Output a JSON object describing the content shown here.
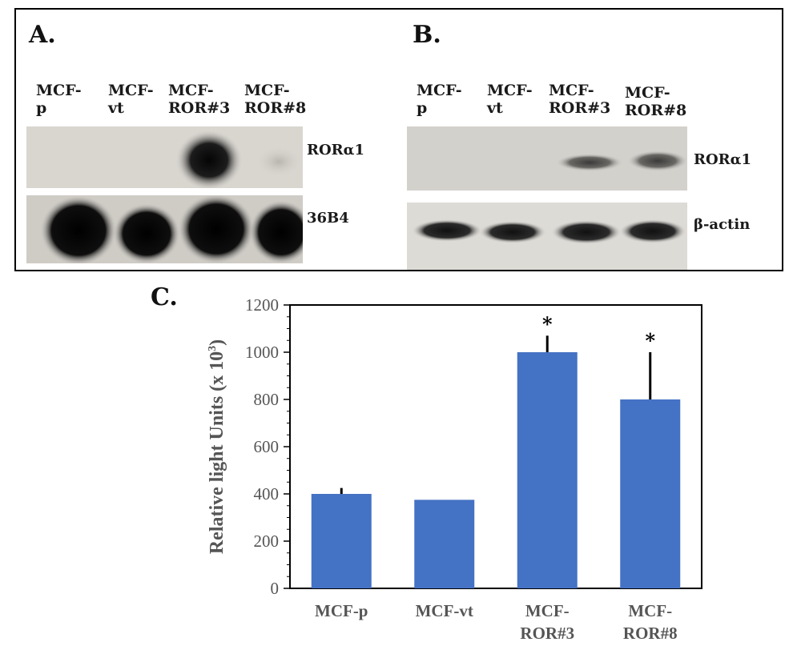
{
  "panels": {
    "a": {
      "label": "A.",
      "lanes": [
        "MCF-\np",
        "MCF-\nvt",
        "MCF-\nROR#3",
        "MCF-\nROR#8"
      ],
      "bands": [
        "RORα1",
        "36B4"
      ]
    },
    "b": {
      "label": "B.",
      "lanes": [
        "MCF-\np",
        "MCF-\nvt",
        "MCF-\nROR#3",
        "MCF-\nROR#8"
      ],
      "bands": [
        "RORα1",
        "β-actin"
      ]
    },
    "c": {
      "label": "C."
    }
  },
  "colors": {
    "bar": "#4472C4",
    "axis": "#000000"
  },
  "chart_data": {
    "type": "bar",
    "categories": [
      "MCF-p",
      "MCF-vt",
      "MCF-\nROR#3",
      "MCF-\nROR#8"
    ],
    "values": [
      400,
      375,
      1000,
      800
    ],
    "errors": [
      25,
      0,
      70,
      200
    ],
    "significance": [
      "",
      "",
      "*",
      "*"
    ],
    "ylabel": "Relative light Units (x 10",
    "ylabel_sup": "3",
    "ylabel_end": ")",
    "ylim": [
      0,
      1200
    ],
    "yticks": [
      0,
      200,
      400,
      600,
      800,
      1000,
      1200
    ],
    "grid": false
  }
}
